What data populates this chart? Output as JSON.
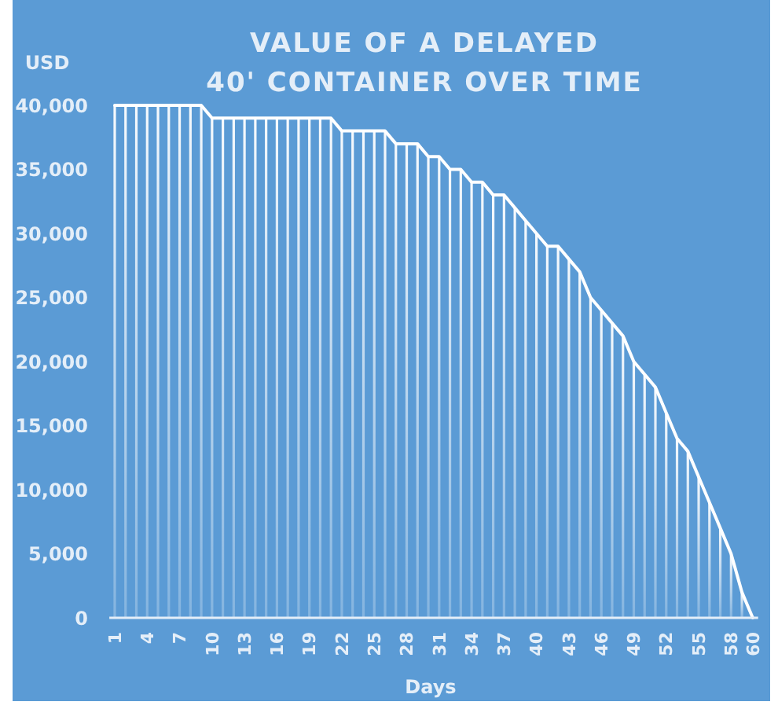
{
  "chart_data": {
    "type": "bar",
    "title": "VALUE OF A DELAYED\n40' CONTAINER OVER TIME",
    "ylabel": "USD",
    "xlabel": "Days",
    "categories": [
      "1",
      null,
      null,
      "4",
      null,
      null,
      "7",
      null,
      null,
      "10",
      null,
      null,
      "13",
      null,
      null,
      "16",
      null,
      null,
      "19",
      null,
      null,
      "22",
      null,
      null,
      "25",
      null,
      null,
      "28",
      null,
      null,
      "31",
      null,
      null,
      "34",
      null,
      null,
      "37",
      null,
      null,
      "40",
      null,
      null,
      "43",
      null,
      null,
      "46",
      null,
      null,
      "49",
      null,
      null,
      "52",
      null,
      null,
      "55",
      null,
      null,
      "58",
      null,
      "60"
    ],
    "series": [
      {
        "color": "#ffffff",
        "values": [
          40000,
          40000,
          40000,
          40000,
          40000,
          40000,
          40000,
          40000,
          40000,
          39000,
          39000,
          39000,
          39000,
          39000,
          39000,
          39000,
          39000,
          39000,
          39000,
          39000,
          39000,
          38000,
          38000,
          38000,
          38000,
          38000,
          37000,
          37000,
          37000,
          36000,
          36000,
          35000,
          35000,
          34000,
          34000,
          33000,
          33000,
          32000,
          31000,
          30000,
          29000,
          29000,
          28000,
          27000,
          25000,
          24000,
          23000,
          22000,
          20000,
          19000,
          18000,
          16000,
          14000,
          13000,
          11000,
          9000,
          7000,
          5000,
          2000,
          0
        ]
      },
      {
        "type": "line",
        "color": "#ffffff",
        "values": [
          40000,
          40000,
          40000,
          40000,
          40000,
          40000,
          40000,
          40000,
          40000,
          39000,
          39000,
          39000,
          39000,
          39000,
          39000,
          39000,
          39000,
          39000,
          39000,
          39000,
          39000,
          38000,
          38000,
          38000,
          38000,
          38000,
          37000,
          37000,
          37000,
          36000,
          36000,
          35000,
          35000,
          34000,
          34000,
          33000,
          33000,
          32000,
          31000,
          30000,
          29000,
          29000,
          28000,
          27000,
          25000,
          24000,
          23000,
          22000,
          20000,
          19000,
          18000,
          16000,
          14000,
          13000,
          11000,
          9000,
          7000,
          5000,
          2000,
          0
        ]
      }
    ],
    "ylim": [
      0,
      40000
    ],
    "yticks": [
      0,
      {
        "value": 5000,
        "label": "5,000"
      },
      {
        "value": 10000,
        "label": "10,000"
      },
      {
        "value": 15000,
        "label": "15,000"
      },
      {
        "value": 20000,
        "label": "20,000"
      },
      {
        "value": 25000,
        "label": "25,000"
      },
      {
        "value": 30000,
        "label": "30,000"
      },
      {
        "value": 35000,
        "label": "35,000"
      },
      {
        "value": 40000,
        "label": "40,000"
      }
    ],
    "grid": false
  }
}
